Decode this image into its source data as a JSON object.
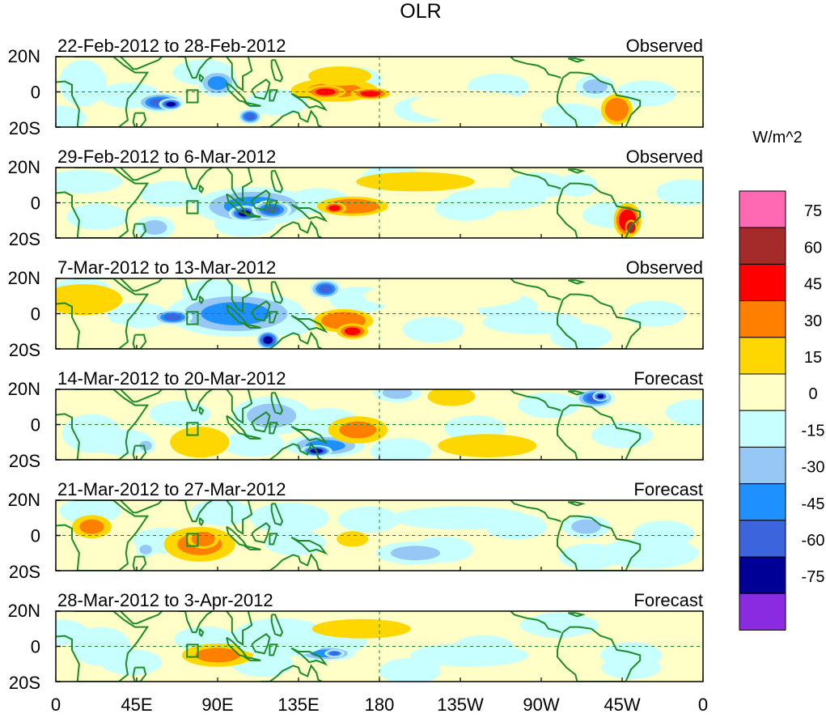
{
  "chart_data": {
    "type": "heatmap",
    "title": "OLR",
    "units_label": "W/m^2",
    "y_ticks": [
      "20N",
      "0",
      "20S"
    ],
    "x_ticks": [
      "0",
      "45E",
      "90E",
      "135E",
      "180",
      "135W",
      "90W",
      "45W",
      "0"
    ],
    "colorbar": {
      "labels": [
        "75",
        "60",
        "45",
        "30",
        "15",
        "0",
        "-15",
        "-30",
        "-45",
        "-60",
        "-75"
      ],
      "colors": [
        "#ff69b4",
        "#a52a2a",
        "#ff0000",
        "#ff7f00",
        "#ffd700",
        "#ffffc8",
        "#c8ffff",
        "#97c8f5",
        "#1e90ff",
        "#3c64dc",
        "#000096",
        "#8a2be2"
      ]
    },
    "panels": [
      {
        "period": "22-Feb-2012 to 28-Feb-2012",
        "type": "Observed",
        "anomalies": [
          {
            "lon": 155,
            "lat": 1,
            "rlon": 22,
            "rlat": 6,
            "value": 35
          },
          {
            "lon": 150,
            "lat": 0,
            "rlon": 10,
            "rlat": 3.5,
            "value": 50
          },
          {
            "lon": 175,
            "lat": -1,
            "rlon": 10,
            "rlat": 3,
            "value": 45
          },
          {
            "lon": 158,
            "lat": 9,
            "rlon": 16,
            "rlat": 5,
            "value": 20
          },
          {
            "lon": 58,
            "lat": -6,
            "rlon": 12,
            "rlat": 5,
            "value": -55
          },
          {
            "lon": 64,
            "lat": -7,
            "rlon": 6,
            "rlat": 3,
            "value": -70
          },
          {
            "lon": 90,
            "lat": 5,
            "rlon": 10,
            "rlat": 7,
            "value": -45
          },
          {
            "lon": 108,
            "lat": -14,
            "rlon": 6,
            "rlat": 4,
            "value": -65
          },
          {
            "lon": 312,
            "lat": -10,
            "rlon": 8,
            "rlat": 8,
            "value": 40
          },
          {
            "lon": 300,
            "lat": 3,
            "rlon": 10,
            "rlat": 6,
            "value": -25
          },
          {
            "lon": 15,
            "lat": 5,
            "rlon": 12,
            "rlat": 12,
            "value": -12
          },
          {
            "lon": 230,
            "lat": -8,
            "rlon": 30,
            "rlat": 8,
            "value": 14
          }
        ]
      },
      {
        "period": "29-Feb-2012 to 6-Mar-2012",
        "type": "Observed",
        "anomalies": [
          {
            "lon": 110,
            "lat": -2,
            "rlon": 30,
            "rlat": 10,
            "value": -40
          },
          {
            "lon": 105,
            "lat": -6,
            "rlon": 8,
            "rlat": 4,
            "value": -70
          },
          {
            "lon": 120,
            "lat": -4,
            "rlon": 10,
            "rlat": 5,
            "value": -55
          },
          {
            "lon": 55,
            "lat": -14,
            "rlon": 10,
            "rlat": 6,
            "value": -35
          },
          {
            "lon": 165,
            "lat": -2,
            "rlon": 18,
            "rlat": 5,
            "value": 40
          },
          {
            "lon": 155,
            "lat": -3,
            "rlon": 6,
            "rlat": 3,
            "value": 50
          },
          {
            "lon": 318,
            "lat": -10,
            "rlon": 7,
            "rlat": 9,
            "value": 55
          },
          {
            "lon": 320,
            "lat": -14,
            "rlon": 3,
            "rlat": 4,
            "value": 70
          },
          {
            "lon": 245,
            "lat": 2,
            "rlon": 25,
            "rlat": 6,
            "value": -20
          },
          {
            "lon": 290,
            "lat": 10,
            "rlon": 10,
            "rlat": 6,
            "value": -18
          },
          {
            "lon": 200,
            "lat": 12,
            "rlon": 30,
            "rlat": 5,
            "value": 15
          },
          {
            "lon": 15,
            "lat": 12,
            "rlon": 20,
            "rlat": 6,
            "value": -15
          }
        ]
      },
      {
        "period": "7-Mar-2012 to 13-Mar-2012",
        "type": "Observed",
        "anomalies": [
          {
            "lon": 100,
            "lat": 0,
            "rlon": 35,
            "rlat": 12,
            "value": -40
          },
          {
            "lon": 65,
            "lat": -2,
            "rlon": 10,
            "rlat": 4,
            "value": -60
          },
          {
            "lon": 118,
            "lat": -15,
            "rlon": 6,
            "rlat": 5,
            "value": -75
          },
          {
            "lon": 150,
            "lat": 14,
            "rlon": 8,
            "rlat": 5,
            "value": -55
          },
          {
            "lon": 160,
            "lat": -4,
            "rlon": 15,
            "rlat": 6,
            "value": 40
          },
          {
            "lon": 165,
            "lat": -10,
            "rlon": 8,
            "rlat": 4,
            "value": 52
          },
          {
            "lon": 215,
            "lat": 10,
            "rlon": 40,
            "rlat": 7,
            "value": 14
          },
          {
            "lon": 265,
            "lat": -5,
            "rlon": 25,
            "rlat": 6,
            "value": -18
          },
          {
            "lon": 15,
            "lat": 8,
            "rlon": 20,
            "rlat": 8,
            "value": 15
          },
          {
            "lon": 30,
            "lat": -12,
            "rlon": 15,
            "rlat": 6,
            "value": 14
          }
        ]
      },
      {
        "period": "14-Mar-2012 to 20-Mar-2012",
        "type": "Forecast",
        "anomalies": [
          {
            "lon": 150,
            "lat": -12,
            "rlon": 20,
            "rlat": 6,
            "value": -50
          },
          {
            "lon": 145,
            "lat": -15,
            "rlon": 8,
            "rlat": 3,
            "value": -75
          },
          {
            "lon": 120,
            "lat": 5,
            "rlon": 20,
            "rlat": 10,
            "value": -25
          },
          {
            "lon": 168,
            "lat": -3,
            "rlon": 15,
            "rlat": 7,
            "value": 30
          },
          {
            "lon": 300,
            "lat": 15,
            "rlon": 10,
            "rlat": 5,
            "value": -55
          },
          {
            "lon": 303,
            "lat": 16,
            "rlon": 4,
            "rlat": 2.5,
            "value": -70
          },
          {
            "lon": 190,
            "lat": 18,
            "rlon": 12,
            "rlat": 5,
            "value": -35
          },
          {
            "lon": 220,
            "lat": 16,
            "rlon": 12,
            "rlat": 5,
            "value": 22
          },
          {
            "lon": 80,
            "lat": -10,
            "rlon": 15,
            "rlat": 8,
            "value": 25
          },
          {
            "lon": 240,
            "lat": -12,
            "rlon": 25,
            "rlat": 6,
            "value": 16
          },
          {
            "lon": 50,
            "lat": -12,
            "rlon": 5,
            "rlat": 4,
            "value": -35
          },
          {
            "lon": 20,
            "lat": -5,
            "rlon": 15,
            "rlat": 10,
            "value": -15
          }
        ]
      },
      {
        "period": "21-Mar-2012 to 27-Mar-2012",
        "type": "Forecast",
        "anomalies": [
          {
            "lon": 80,
            "lat": -5,
            "rlon": 18,
            "rlat": 9,
            "value": 30
          },
          {
            "lon": 82,
            "lat": -2,
            "rlon": 8,
            "rlat": 5,
            "value": 40
          },
          {
            "lon": 130,
            "lat": 10,
            "rlon": 20,
            "rlat": 8,
            "value": -18
          },
          {
            "lon": 200,
            "lat": -10,
            "rlon": 20,
            "rlat": 6,
            "value": -25
          },
          {
            "lon": 295,
            "lat": 5,
            "rlon": 12,
            "rlat": 6,
            "value": -30
          },
          {
            "lon": 225,
            "lat": 10,
            "rlon": 35,
            "rlat": 6,
            "value": -15
          },
          {
            "lon": 20,
            "lat": 5,
            "rlon": 10,
            "rlat": 6,
            "value": 30
          },
          {
            "lon": 50,
            "lat": -8,
            "rlon": 5,
            "rlat": 4,
            "value": -35
          },
          {
            "lon": 330,
            "lat": -10,
            "rlon": 25,
            "rlat": 8,
            "value": -15
          },
          {
            "lon": 165,
            "lat": -2,
            "rlon": 8,
            "rlat": 4,
            "value": 20
          }
        ]
      },
      {
        "period": "28-Mar-2012 to 3-Apr-2012",
        "type": "Forecast",
        "anomalies": [
          {
            "lon": 90,
            "lat": -5,
            "rlon": 18,
            "rlat": 6,
            "value": 30
          },
          {
            "lon": 150,
            "lat": -4,
            "rlon": 15,
            "rlat": 4,
            "value": -40
          },
          {
            "lon": 155,
            "lat": -4,
            "rlon": 5,
            "rlat": 2,
            "value": -60
          },
          {
            "lon": 125,
            "lat": 5,
            "rlon": 25,
            "rlat": 10,
            "value": -18
          },
          {
            "lon": 170,
            "lat": 10,
            "rlon": 25,
            "rlat": 5,
            "value": 18
          },
          {
            "lon": 280,
            "lat": 12,
            "rlon": 20,
            "rlat": 6,
            "value": -18
          },
          {
            "lon": 320,
            "lat": -12,
            "rlon": 15,
            "rlat": 6,
            "value": -20
          },
          {
            "lon": 25,
            "lat": 0,
            "rlon": 15,
            "rlat": 10,
            "value": -15
          },
          {
            "lon": 230,
            "lat": -5,
            "rlon": 30,
            "rlat": 6,
            "value": -15
          }
        ]
      }
    ]
  }
}
